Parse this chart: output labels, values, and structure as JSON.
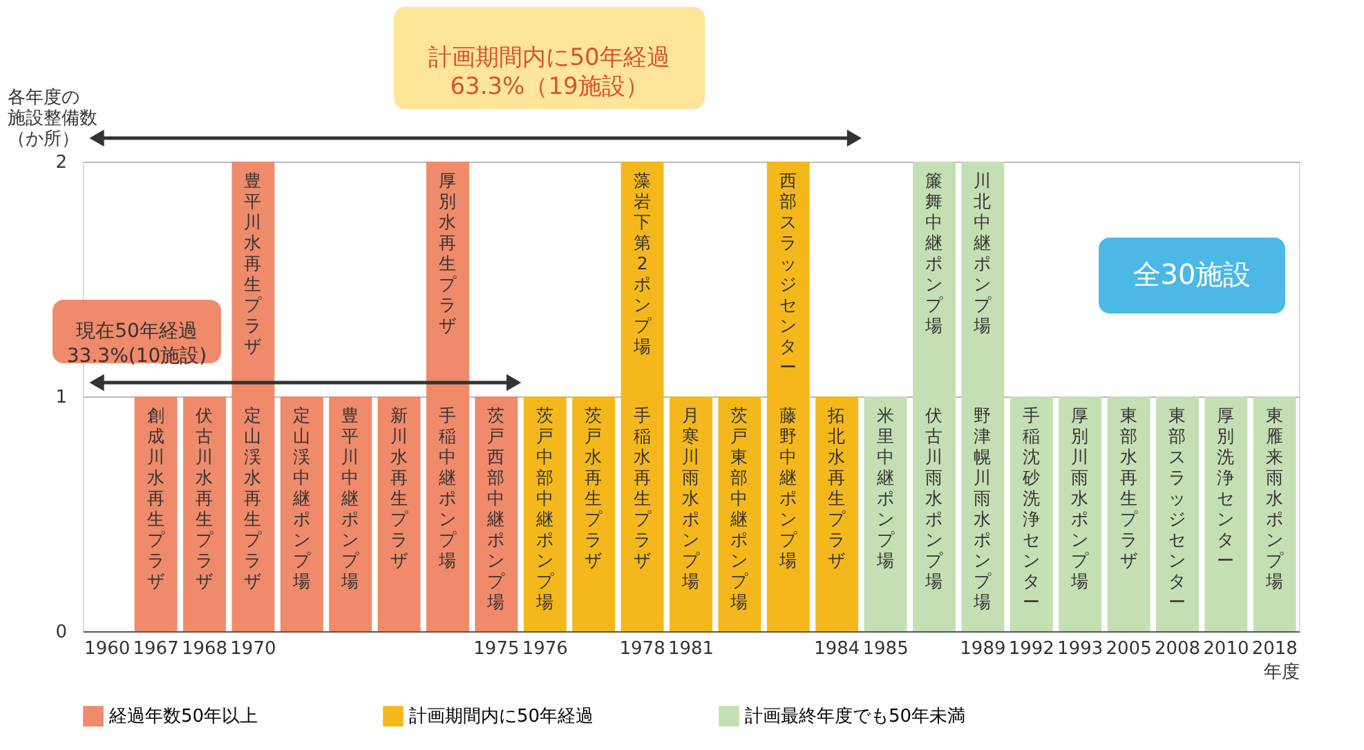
{
  "chart_data": {
    "type": "bar",
    "stacked": true,
    "ylabel": "各年度の施設整備数（か所）",
    "xlabel": "年度",
    "categories": [
      "1960",
      "1967",
      "1968",
      "1970",
      null,
      null,
      null,
      null,
      "1975",
      "1976",
      null,
      "1978",
      "1981",
      null,
      null,
      "1984",
      "1985",
      null,
      "1989",
      "1992",
      "1993",
      "2005",
      "2008",
      "2010",
      "2018"
    ],
    "ylim": [
      0,
      2
    ],
    "yticks": [
      0,
      1,
      2
    ],
    "grid": "y",
    "legend": "bottom",
    "series": [
      {
        "name": "経過年数50年以上",
        "color": "#ef8a6b",
        "values": [
          null,
          1,
          1,
          1,
          1,
          1,
          1,
          1,
          1,
          null,
          null,
          null,
          null,
          null,
          null,
          null,
          null,
          null,
          null,
          null,
          null,
          null,
          null,
          null,
          null
        ],
        "value_labels": [
          null,
          "創成川水再生プラザ",
          "伏古川水再生プラザ",
          "定山渓水再生プラザ",
          "定山渓中継ポンプ場",
          "豊平川中継ポンプ場",
          "新川水再生プラザ",
          "手稲中継ポンプ場",
          "茨戸西部中継ポンプ場",
          null,
          null,
          null,
          null,
          null,
          null,
          null,
          null,
          null,
          null,
          null,
          null,
          null,
          null,
          null,
          null
        ]
      },
      {
        "color": "#ef8a6b",
        "values": [
          null,
          null,
          null,
          1,
          null,
          null,
          null,
          1,
          null,
          null,
          null,
          null,
          null,
          null,
          null,
          null,
          null,
          null,
          null,
          null,
          null,
          null,
          null,
          null,
          null
        ],
        "value_labels": [
          null,
          null,
          null,
          "豊平川水再生プラザ",
          null,
          null,
          null,
          "厚別水再生プラザ",
          null,
          null,
          null,
          null,
          null,
          null,
          null,
          null,
          null,
          null,
          null,
          null,
          null,
          null,
          null,
          null,
          null
        ]
      },
      {
        "name": "計画期間内に50年経過",
        "color": "#f5b81c",
        "values": [
          null,
          null,
          null,
          null,
          null,
          null,
          null,
          null,
          null,
          1,
          1,
          1,
          1,
          1,
          1,
          1,
          null,
          null,
          null,
          null,
          null,
          null,
          null,
          null,
          null
        ],
        "value_labels": [
          null,
          null,
          null,
          null,
          null,
          null,
          null,
          null,
          null,
          "茨戸中部中継ポンプ場",
          "茨戸水再生プラザ",
          "手稲水再生プラザ",
          "月寒川雨水ポンプ場",
          "茨戸東部中継ポンプ場",
          "藤野中継ポンプ場",
          "拓北水再生プラザ",
          null,
          null,
          null,
          null,
          null,
          null,
          null,
          null,
          null
        ]
      },
      {
        "color": "#f5b81c",
        "values": [
          null,
          null,
          null,
          null,
          null,
          null,
          null,
          null,
          null,
          null,
          null,
          1,
          null,
          null,
          1,
          null,
          null,
          null,
          null,
          null,
          null,
          null,
          null,
          null,
          null
        ],
        "value_labels": [
          null,
          null,
          null,
          null,
          null,
          null,
          null,
          null,
          null,
          null,
          null,
          "藻岩下第2ポンプ場",
          null,
          null,
          "西部スラッジセンター",
          null,
          null,
          null,
          null,
          null,
          null,
          null,
          null,
          null,
          null
        ]
      },
      {
        "name": "計画最終年度でも50年未満",
        "color": "#c5dfb5",
        "values": [
          null,
          null,
          null,
          null,
          null,
          null,
          null,
          null,
          null,
          null,
          null,
          null,
          null,
          null,
          null,
          null,
          1,
          1,
          1,
          1,
          1,
          1,
          1,
          1,
          1
        ],
        "value_labels": [
          null,
          null,
          null,
          null,
          null,
          null,
          null,
          null,
          null,
          null,
          null,
          null,
          null,
          null,
          null,
          null,
          "米里中継ポンプ場",
          "伏古川雨水ポンプ場",
          "野津幌川雨水ポンプ場",
          "手稲沈砂洗浄センター",
          "厚別川雨水ポンプ場",
          "東部水再生プラザ",
          "東部スラッジセンター",
          "厚別洗浄センター",
          "東雁来雨水ポンプ場"
        ]
      },
      {
        "color": "#c5dfb5",
        "values": [
          null,
          null,
          null,
          null,
          null,
          null,
          null,
          null,
          null,
          null,
          null,
          null,
          null,
          null,
          null,
          null,
          null,
          1,
          1,
          null,
          null,
          null,
          null,
          null,
          null
        ],
        "value_labels": [
          null,
          null,
          null,
          null,
          null,
          null,
          null,
          null,
          null,
          null,
          null,
          null,
          null,
          null,
          null,
          null,
          null,
          "簾舞中継ポンプ場",
          "川北中継ポンプ場",
          null,
          null,
          null,
          null,
          null,
          null
        ]
      }
    ],
    "annotations": [
      "計画期間内に50年経過\n63.3%（19施設）",
      "現在50年経過\n33.3%(10施設)",
      "全30施設"
    ]
  }
}
